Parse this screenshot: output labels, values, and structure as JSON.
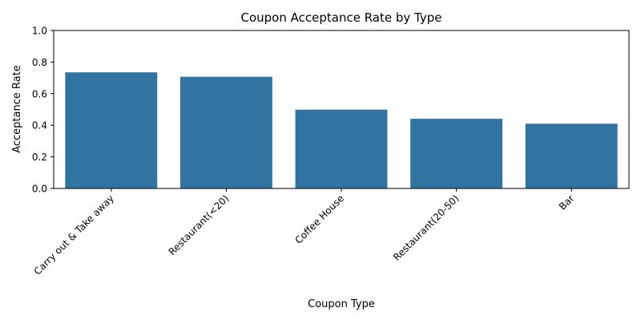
{
  "chart_data": {
    "type": "bar",
    "title": "Coupon Acceptance Rate by Type",
    "xlabel": "Coupon Type",
    "ylabel": "Acceptance Rate",
    "categories": [
      "Carry out & Take away",
      "Restaurant(<20)",
      "Coffee House",
      "Restaurant(20-50)",
      "Bar"
    ],
    "values": [
      0.735,
      0.707,
      0.499,
      0.441,
      0.41
    ],
    "ylim": [
      0,
      1
    ],
    "yticks": [
      "0.0",
      "0.2",
      "0.4",
      "0.6",
      "0.8",
      "1.0"
    ],
    "grid": false,
    "bar_color": "#3274a1"
  }
}
